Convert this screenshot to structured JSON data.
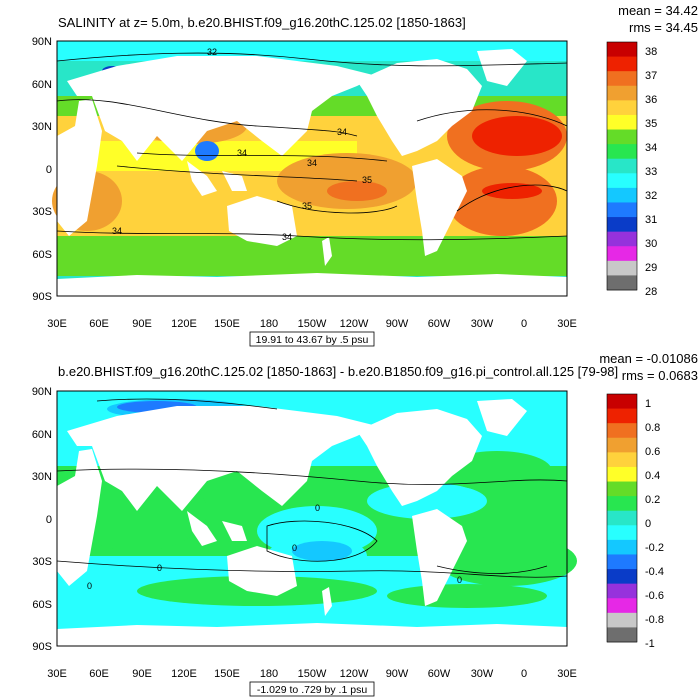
{
  "panels": [
    {
      "title": "SALINITY at z=   5.0m, b.e20.BHIST.f09_g16.20thC.125.02 [1850-1863]",
      "stats": [
        "mean = 34.42",
        "rms = 34.45"
      ],
      "range_label": "19.91 to 43.67 by .5 psu",
      "lat_ticks": [
        "90N",
        "60N",
        "30N",
        "0",
        "30S",
        "60S",
        "90S"
      ],
      "lon_ticks": [
        "30E",
        "60E",
        "90E",
        "120E",
        "150E",
        "180",
        "150W",
        "120W",
        "90W",
        "60W",
        "30W",
        "0",
        "30E"
      ],
      "colorbar": {
        "labels": [
          "38",
          "37",
          "36",
          "35",
          "34",
          "33",
          "32",
          "31",
          "30",
          "29",
          "28"
        ],
        "colors": [
          "#c80000",
          "#ee2200",
          "#f07020",
          "#f0a030",
          "#ffd23c",
          "#ffff28",
          "#64dc28",
          "#28e650",
          "#28e6c8",
          "#28ffff",
          "#14c8ff",
          "#1e7aff",
          "#0a3cc8",
          "#9632dc",
          "#e628e6",
          "#c8c8c8",
          "#6e6e6e"
        ]
      },
      "contour_labels": [
        "32",
        "34",
        "34",
        "34",
        "35",
        "35",
        "34",
        "34"
      ]
    },
    {
      "title": "b.e20.BHIST.f09_g16.20thC.125.02 [1850-1863] - b.e20.B1850.f09_g16.pi_control.all.125 [79-98]",
      "stats": [
        "mean = -0.01086",
        "rms = 0.0683"
      ],
      "range_label": "-1.029 to .729 by .1 psu",
      "lat_ticks": [
        "90N",
        "60N",
        "30N",
        "0",
        "30S",
        "60S",
        "90S"
      ],
      "lon_ticks": [
        "30E",
        "60E",
        "90E",
        "120E",
        "150E",
        "180",
        "150W",
        "120W",
        "90W",
        "60W",
        "30W",
        "0",
        "30E"
      ],
      "colorbar": {
        "labels": [
          "1",
          "0.8",
          "0.6",
          "0.4",
          "0.2",
          "0",
          "-0.2",
          "-0.4",
          "-0.6",
          "-0.8",
          "-1"
        ],
        "colors": [
          "#c80000",
          "#ee2200",
          "#f07020",
          "#f0a030",
          "#ffd23c",
          "#ffff28",
          "#64dc28",
          "#28e650",
          "#28e6c8",
          "#28ffff",
          "#14c8ff",
          "#1e7aff",
          "#0a3cc8",
          "#9632dc",
          "#e628e6",
          "#c8c8c8",
          "#6e6e6e"
        ]
      },
      "contour_labels": [
        "0",
        "0",
        "0",
        "0",
        "0"
      ]
    }
  ]
}
